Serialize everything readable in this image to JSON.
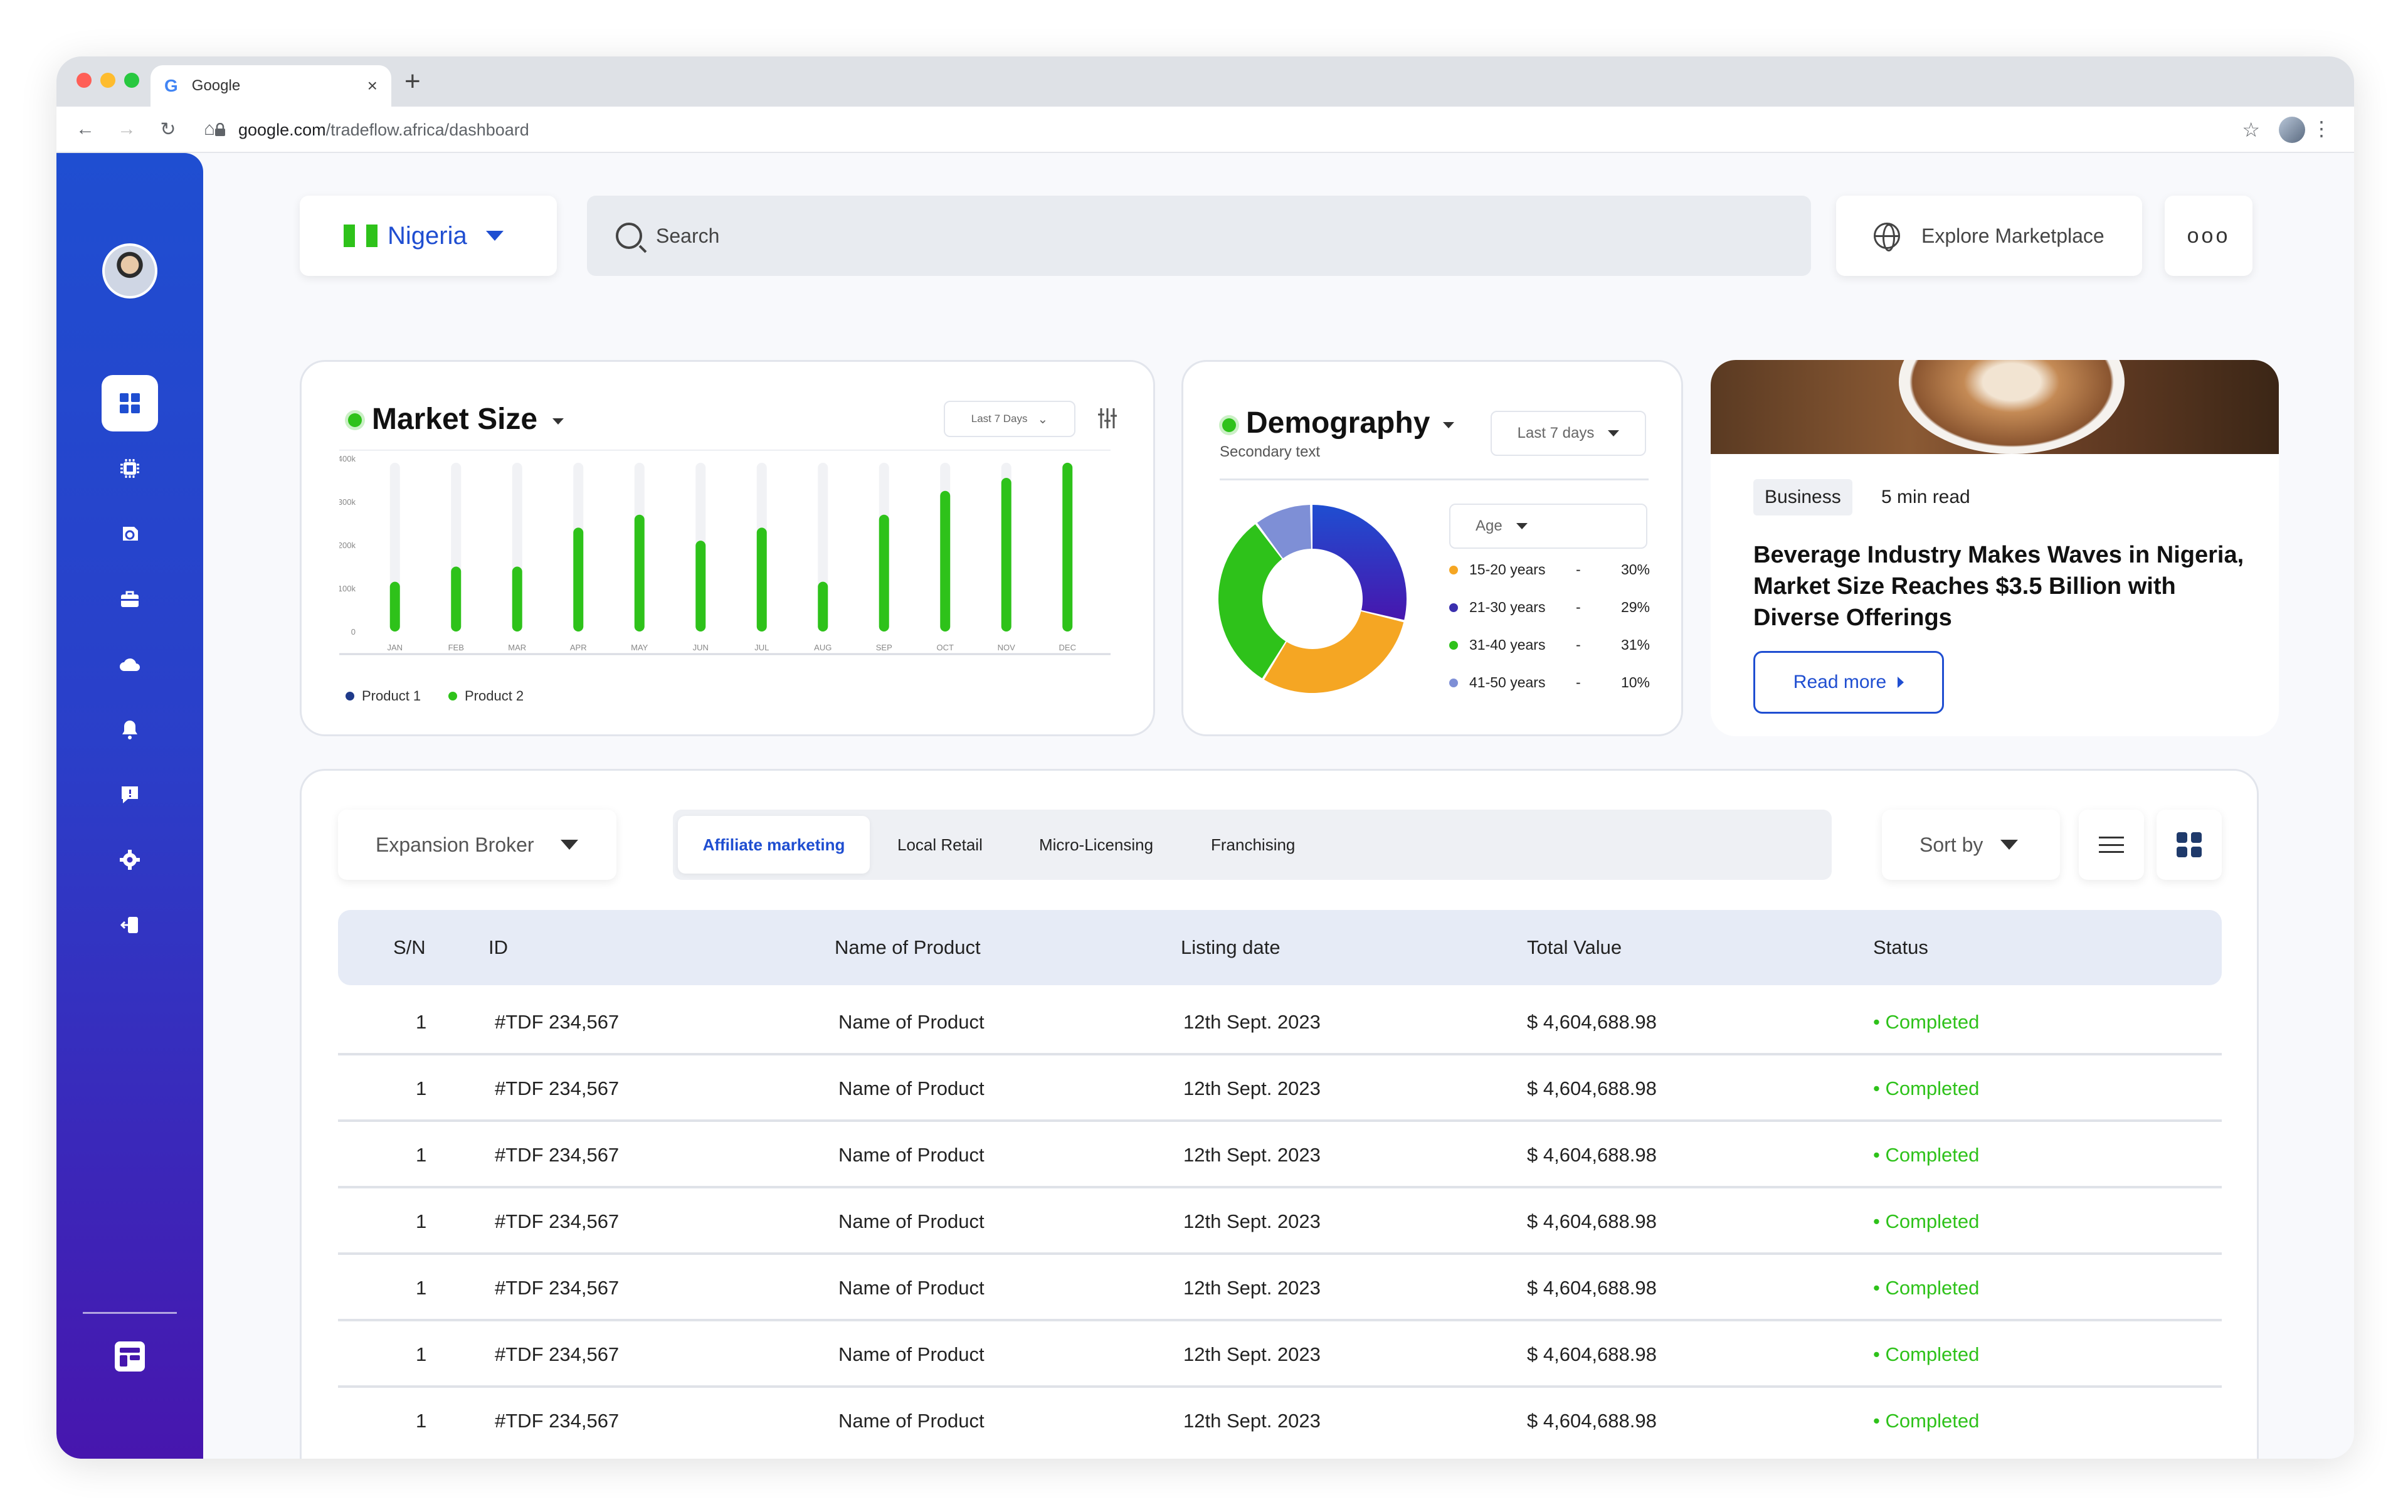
{
  "browser": {
    "tab_title": "Google",
    "tab_close": "×",
    "new_tab": "+",
    "url_host": "google.com",
    "url_path": "/tradeflow.africa/dashboard"
  },
  "header": {
    "country": "Nigeria",
    "search_placeholder": "Search",
    "explore_label": "Explore Marketplace",
    "more_label": "ooo"
  },
  "market_size": {
    "title": "Market Size",
    "period": "Last 7 Days",
    "legend": [
      "Product 1",
      "Product 2"
    ]
  },
  "demography": {
    "title": "Demography",
    "subtitle": "Secondary text",
    "period": "Last 7 days",
    "filter": "Age",
    "groups": [
      {
        "label": "15-20 years",
        "pct": "30%",
        "color": "#f5a623"
      },
      {
        "label": "21-30 years",
        "pct": "29%",
        "color": "#3a2fae"
      },
      {
        "label": "31-40 years",
        "pct": "31%",
        "color": "#2ec21a"
      },
      {
        "label": "41-50 years",
        "pct": "10%",
        "color": "#7e8fd6"
      }
    ]
  },
  "news": {
    "category": "Business",
    "read_time": "5 min read",
    "headline": "Beverage Industry Makes Waves in Nigeria, Market Size Reaches $3.5 Billion with Diverse Offerings",
    "cta": "Read more"
  },
  "listing": {
    "broker_select": "Expansion Broker",
    "tabs": [
      "Affiliate marketing",
      "Local Retail",
      "Micro-Licensing",
      "Franchising"
    ],
    "sort_label": "Sort by",
    "columns": [
      "S/N",
      "ID",
      "Name of Product",
      "Listing date",
      "Total Value",
      "Status"
    ],
    "rows": [
      {
        "sn": "1",
        "id": "#TDF 234,567",
        "name": "Name of Product",
        "date": "12th Sept. 2023",
        "value": "$ 4,604,688.98",
        "status": "• Completed"
      },
      {
        "sn": "1",
        "id": "#TDF 234,567",
        "name": "Name of Product",
        "date": "12th Sept. 2023",
        "value": "$ 4,604,688.98",
        "status": "• Completed"
      },
      {
        "sn": "1",
        "id": "#TDF 234,567",
        "name": "Name of Product",
        "date": "12th Sept. 2023",
        "value": "$ 4,604,688.98",
        "status": "• Completed"
      },
      {
        "sn": "1",
        "id": "#TDF 234,567",
        "name": "Name of Product",
        "date": "12th Sept. 2023",
        "value": "$ 4,604,688.98",
        "status": "• Completed"
      },
      {
        "sn": "1",
        "id": "#TDF 234,567",
        "name": "Name of Product",
        "date": "12th Sept. 2023",
        "value": "$ 4,604,688.98",
        "status": "• Completed"
      },
      {
        "sn": "1",
        "id": "#TDF 234,567",
        "name": "Name of Product",
        "date": "12th Sept. 2023",
        "value": "$ 4,604,688.98",
        "status": "• Completed"
      },
      {
        "sn": "1",
        "id": "#TDF 234,567",
        "name": "Name of Product",
        "date": "12th Sept. 2023",
        "value": "$ 4,604,688.98",
        "status": "• Completed"
      }
    ]
  },
  "sidebar": {
    "icons": [
      "dashboard-icon",
      "chip-icon",
      "copyright-icon",
      "briefcase-icon",
      "cloud-icon",
      "bell-icon",
      "chat-icon",
      "settings-icon",
      "logout-icon",
      "store-icon"
    ]
  },
  "colors": {
    "accent": "#1f4ed1",
    "green": "#2ec21a",
    "sidebar_top": "#1f4ed1",
    "sidebar_bottom": "#4716ae"
  },
  "chart_data": [
    {
      "type": "bar",
      "title": "Market Size",
      "categories": [
        "JAN",
        "FEB",
        "MAR",
        "APR",
        "MAY",
        "JUN",
        "JUL",
        "AUG",
        "SEP",
        "OCT",
        "NOV",
        "DEC"
      ],
      "y_ticks": [
        "0",
        "100k",
        "200k",
        "300k",
        "400k"
      ],
      "ylim": [
        0,
        400000
      ],
      "series": [
        {
          "name": "Product 1",
          "color": "#1f3a8a",
          "values": [
            390000,
            390000,
            390000,
            390000,
            390000,
            390000,
            390000,
            390000,
            390000,
            390000,
            390000,
            390000
          ]
        },
        {
          "name": "Product 2",
          "color": "#2ec21a",
          "values": [
            115000,
            150000,
            150000,
            240000,
            270000,
            210000,
            240000,
            115000,
            270000,
            325000,
            355000,
            390000
          ]
        }
      ],
      "legend": "bottom-left",
      "grid": false
    },
    {
      "type": "pie",
      "title": "Demography",
      "categories": [
        "15-20 years",
        "21-30 years",
        "31-40 years",
        "41-50 years"
      ],
      "values": [
        30,
        29,
        31,
        10
      ]
    }
  ]
}
